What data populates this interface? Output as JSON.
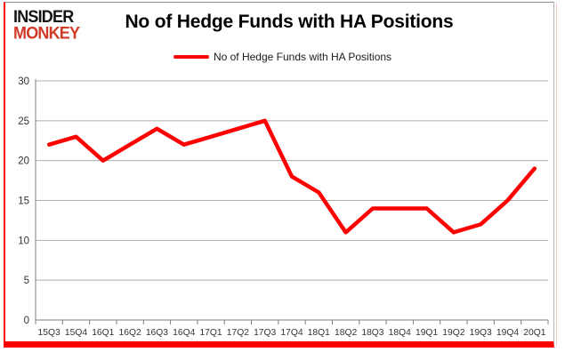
{
  "logo": {
    "line1": "INSIDER",
    "line2": "MONKEY"
  },
  "header": {
    "title": "No of Hedge Funds with HA Positions"
  },
  "legend": {
    "label": "No of Hedge Funds with HA Positions",
    "color": "#fe0000"
  },
  "colors": {
    "series": "#fe0000",
    "gridline": "#aeaeae",
    "axis": "#7f7f7f",
    "tick_text": "#333333",
    "frame_accent": "#fe0000"
  },
  "chart_data": {
    "type": "line",
    "title": "No of Hedge Funds with HA Positions",
    "categories": [
      "15Q3",
      "15Q4",
      "16Q1",
      "16Q2",
      "16Q3",
      "16Q4",
      "17Q1",
      "17Q2",
      "17Q3",
      "17Q4",
      "18Q1",
      "18Q2",
      "18Q3",
      "18Q4",
      "19Q1",
      "19Q2",
      "19Q3",
      "19Q4",
      "20Q1"
    ],
    "series": [
      {
        "name": "No of Hedge Funds with HA Positions",
        "color": "#fe0000",
        "values": [
          22,
          23,
          20,
          22,
          24,
          22,
          23,
          24,
          25,
          18,
          16,
          11,
          14,
          14,
          14,
          11,
          12,
          15,
          19
        ]
      }
    ],
    "xlabel": "",
    "ylabel": "",
    "ylim": [
      0,
      30
    ],
    "ytick_interval": 5,
    "ytick_labels": [
      "0",
      "5",
      "10",
      "15",
      "20",
      "25",
      "30"
    ],
    "grid": "horizontal",
    "legend_position": "top-center"
  }
}
